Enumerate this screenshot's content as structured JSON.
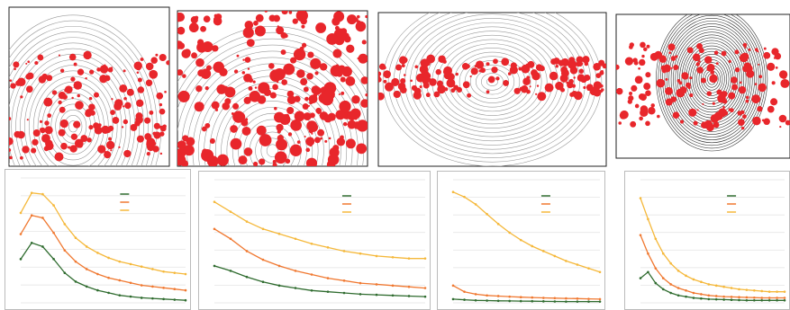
{
  "chart_data": [
    {
      "type": "line",
      "ylim": [
        0,
        100
      ],
      "series": [
        {
          "color": "#2e6b2e",
          "values": [
            35,
            48,
            45,
            35,
            24,
            17,
            13,
            10,
            8,
            6,
            5,
            4,
            3.5,
            3,
            2.5,
            2
          ]
        },
        {
          "color": "#f07830",
          "values": [
            55,
            70,
            68,
            56,
            42,
            33,
            27,
            23,
            20,
            18,
            16,
            14,
            13,
            12,
            11,
            10
          ]
        },
        {
          "color": "#f5b83a",
          "values": [
            72,
            88,
            87,
            78,
            63,
            52,
            45,
            40,
            36,
            33,
            31,
            29,
            27,
            25,
            24,
            23
          ]
        }
      ]
    },
    {
      "type": "line",
      "ylim": [
        0,
        100
      ],
      "series": [
        {
          "color": "#2e6b2e",
          "values": [
            30,
            26,
            21,
            17,
            14,
            12,
            10,
            9,
            8,
            7,
            6.5,
            6,
            5.5,
            5
          ]
        },
        {
          "color": "#f07830",
          "values": [
            60,
            52,
            42,
            35,
            30,
            26,
            23,
            20,
            18,
            16,
            15,
            14,
            13,
            12
          ]
        },
        {
          "color": "#f5b83a",
          "values": [
            82,
            74,
            66,
            60,
            56,
            52,
            48,
            45,
            42,
            40,
            38,
            37,
            36,
            36
          ]
        }
      ]
    },
    {
      "type": "line",
      "ylim": [
        0,
        100
      ],
      "series": [
        {
          "color": "#2e6b2e",
          "values": [
            3,
            2.5,
            2,
            1.8,
            1.6,
            1.5,
            1.4,
            1.3,
            1.2,
            1.1,
            1,
            1,
            1,
            1
          ]
        },
        {
          "color": "#f07830",
          "values": [
            14,
            9,
            7,
            6,
            5.5,
            5,
            4.6,
            4.3,
            4,
            3.8,
            3.6,
            3.4,
            3.2,
            3
          ]
        },
        {
          "color": "#f5b83a",
          "values": [
            90,
            86,
            80,
            72,
            64,
            57,
            51,
            46,
            42,
            38,
            34,
            31,
            28,
            25
          ]
        }
      ]
    },
    {
      "type": "line",
      "ylim": [
        0,
        100
      ],
      "series": [
        {
          "color": "#2e6b2e",
          "values": [
            20,
            25,
            16,
            11,
            8,
            6,
            5,
            4,
            3.5,
            3,
            2.8,
            2.6,
            2.4,
            2.2,
            2,
            2,
            2,
            2,
            2,
            2
          ]
        },
        {
          "color": "#f07830",
          "values": [
            55,
            40,
            28,
            20,
            15,
            12,
            10,
            8,
            7,
            6,
            5.5,
            5,
            4.8,
            4.6,
            4.4,
            4.2,
            4,
            4,
            4,
            4
          ]
        },
        {
          "color": "#f5b83a",
          "values": [
            85,
            68,
            52,
            40,
            32,
            26,
            22,
            19,
            17,
            15,
            14,
            13,
            12,
            11,
            10.5,
            10,
            9.5,
            9,
            9,
            9
          ]
        }
      ]
    }
  ]
}
